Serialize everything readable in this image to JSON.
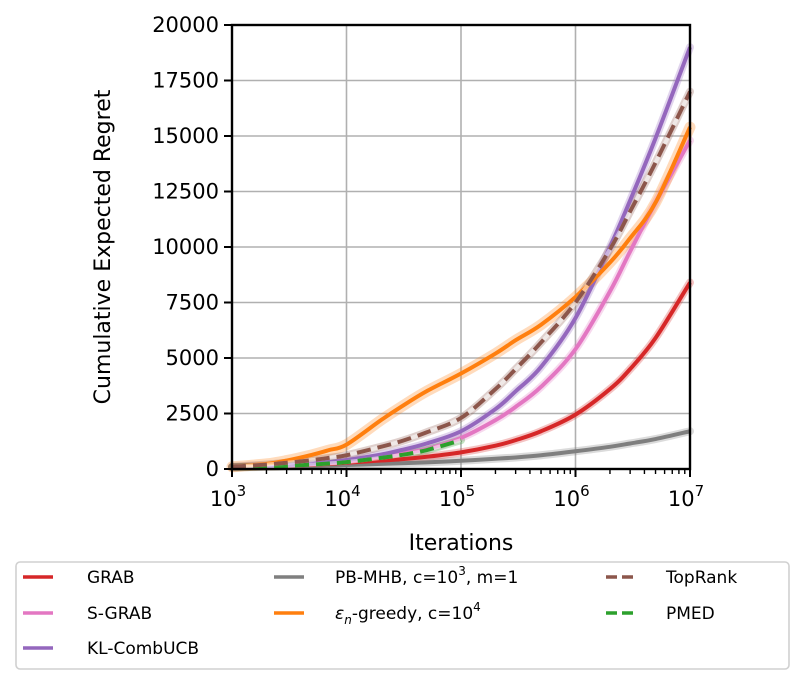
{
  "chart_data": {
    "type": "line",
    "title": "",
    "xlabel": "Iterations",
    "ylabel": "Cumulative Expected Regret",
    "xscale": "log",
    "xlim": [
      1000,
      10000000
    ],
    "ylim": [
      0,
      20000
    ],
    "grid": true,
    "legend_placement": "bottom",
    "xticks": [
      {
        "value": 1000,
        "base": "10",
        "exp": "3"
      },
      {
        "value": 10000,
        "base": "10",
        "exp": "4"
      },
      {
        "value": 100000,
        "base": "10",
        "exp": "5"
      },
      {
        "value": 1000000,
        "base": "10",
        "exp": "6"
      },
      {
        "value": 10000000,
        "base": "10",
        "exp": "7"
      }
    ],
    "yticks": [
      0,
      2500,
      5000,
      7500,
      10000,
      12500,
      15000,
      17500,
      20000
    ],
    "x": [
      1000,
      2000,
      3000,
      5000,
      7000,
      10000,
      20000,
      30000,
      50000,
      100000,
      200000,
      300000,
      500000,
      1000000,
      2000000,
      3000000,
      5000000,
      10000000
    ],
    "series": [
      {
        "name": "GRAB",
        "color": "#d62728",
        "dash": false,
        "values": [
          80,
          110,
          140,
          190,
          230,
          280,
          380,
          440,
          550,
          750,
          1050,
          1300,
          1700,
          2450,
          3600,
          4500,
          5900,
          8400
        ]
      },
      {
        "name": "S-GRAB",
        "color": "#e377c2",
        "dash": false,
        "values": [
          80,
          120,
          150,
          220,
          270,
          330,
          550,
          700,
          900,
          1400,
          2200,
          2800,
          3700,
          5400,
          8000,
          9800,
          12000,
          14800
        ]
      },
      {
        "name": "KL-CombUCB",
        "color": "#9467bd",
        "dash": false,
        "values": [
          80,
          130,
          170,
          250,
          310,
          400,
          650,
          850,
          1150,
          1700,
          2700,
          3500,
          4600,
          6800,
          10000,
          12100,
          14900,
          19000
        ]
      },
      {
        "name": "PB-MHB, c=10³, m=1",
        "color": "#7f7f7f",
        "dash": false,
        "values": [
          70,
          95,
          110,
          140,
          160,
          180,
          230,
          260,
          300,
          370,
          460,
          520,
          620,
          800,
          1000,
          1150,
          1350,
          1700
        ]
      },
      {
        "name": "εn-greedy, c=10⁴",
        "color": "#ff7f0e",
        "dash": false,
        "values": [
          100,
          230,
          380,
          640,
          850,
          1100,
          2200,
          2800,
          3500,
          4300,
          5200,
          5800,
          6500,
          7750,
          9300,
          10400,
          12000,
          15400
        ]
      },
      {
        "name": "TopRank",
        "color": "#8c564b",
        "dash": true,
        "values": [
          100,
          200,
          280,
          400,
          500,
          620,
          1000,
          1250,
          1650,
          2300,
          3600,
          4500,
          5700,
          7500,
          9900,
          11600,
          13800,
          17000
        ]
      },
      {
        "name": "PMED",
        "color": "#2ca02c",
        "dash": true,
        "values": [
          80,
          110,
          140,
          200,
          250,
          310,
          500,
          630,
          850,
          1300
        ]
      }
    ]
  },
  "legend": {
    "col1": [
      {
        "name": "GRAB",
        "color": "#d62728",
        "dash": false
      },
      {
        "name": "S-GRAB",
        "color": "#e377c2",
        "dash": false
      },
      {
        "name": "KL-CombUCB",
        "color": "#9467bd",
        "dash": false
      }
    ],
    "col2": [
      {
        "main": "PB-MHB, c=10",
        "sup": "3",
        "tail": ", m=1",
        "color": "#7f7f7f",
        "dash": false
      },
      {
        "eps": "ε",
        "sub": "n",
        "main": "-greedy, c=10",
        "sup": "4",
        "tail": "",
        "color": "#ff7f0e",
        "dash": false
      }
    ],
    "col3": [
      {
        "name": "TopRank",
        "color": "#8c564b",
        "dash": true
      },
      {
        "name": "PMED",
        "color": "#2ca02c",
        "dash": true
      }
    ]
  }
}
